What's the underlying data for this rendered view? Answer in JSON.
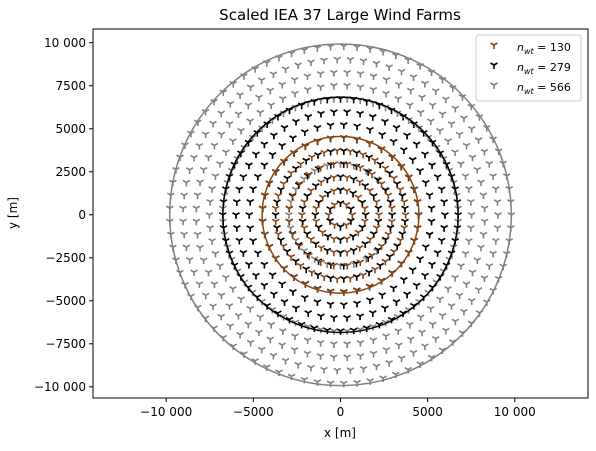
{
  "chart_data": {
    "type": "scatter",
    "title": "Scaled IEA 37 Large Wind Farms",
    "xlabel": "x [m]",
    "ylabel": "y [m]",
    "xlim": [
      -14200,
      14200
    ],
    "ylim": [
      -10650,
      10800
    ],
    "xticks": [
      -10000,
      -5000,
      0,
      5000,
      10000
    ],
    "xtick_labels": [
      "−10 000",
      "−5000",
      "0",
      "5000",
      "10 000"
    ],
    "yticks": [
      -10000,
      -7500,
      -5000,
      -2500,
      0,
      2500,
      5000,
      7500,
      10000
    ],
    "ytick_labels": [
      "−10 000",
      "−7500",
      "−5000",
      "−2500",
      "0",
      "2500",
      "5000",
      "7500",
      "10 000"
    ],
    "grid": false,
    "legend_position": "top-right",
    "marker": "tri_down",
    "series": [
      {
        "name": "n_wt = 130",
        "legend_label": {
          "sym": "n",
          "sub": "wt",
          "value": "= 130"
        },
        "color": "#8b4513",
        "boundary_radius": 4500,
        "turbine_count": 130
      },
      {
        "name": "n_wt = 279",
        "legend_label": {
          "sym": "n",
          "sub": "wt",
          "value": "= 279"
        },
        "color": "#000000",
        "boundary_radius": 6750,
        "turbine_count": 279
      },
      {
        "name": "n_wt = 566",
        "legend_label": {
          "sym": "n",
          "sub": "wt",
          "value": "= 566"
        },
        "color": "#808080",
        "boundary_radius": 9800,
        "turbine_count": 566
      }
    ]
  }
}
